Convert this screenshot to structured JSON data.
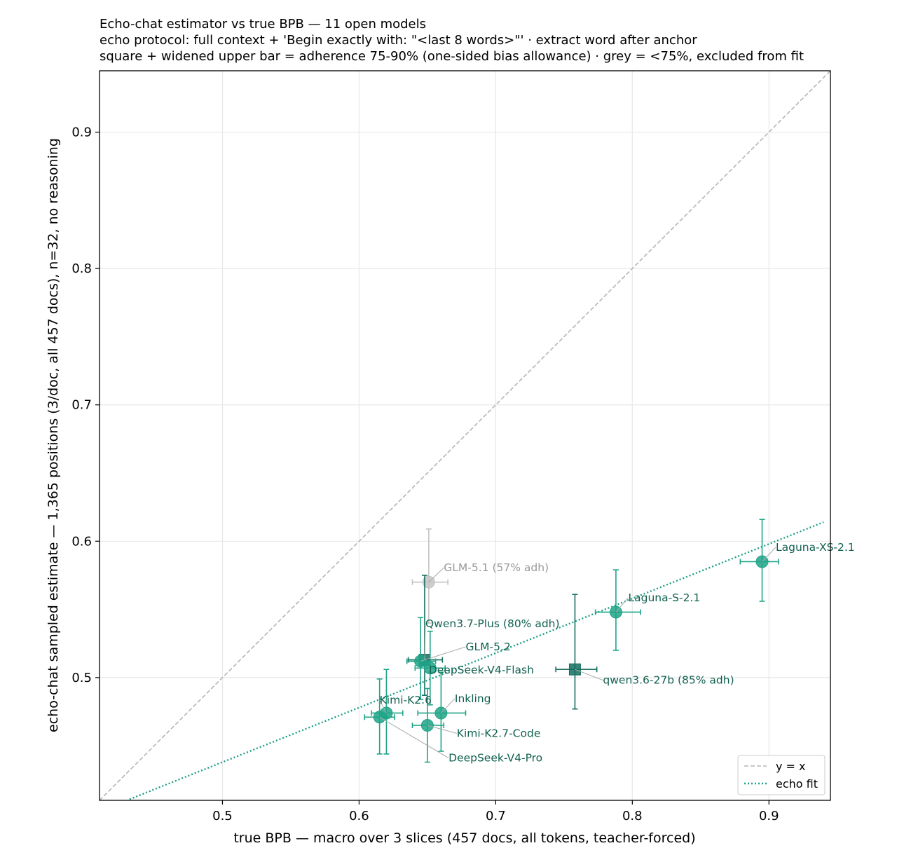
{
  "chart_data": {
    "type": "scatter",
    "title_lines": [
      "Echo-chat estimator vs true BPB — 11 open models",
      "echo protocol: full context + 'Begin exactly with: \"<last 8 words>\"' · extract word after anchor",
      "square + widened upper bar = adherence 75-90% (one-sided bias allowance) · grey = <75%, excluded from fit"
    ],
    "xlabel": "true BPB — macro over 3 slices (457 docs, all tokens, teacher-forced)",
    "ylabel": "echo-chat sampled estimate — 1,365 positions (3/doc, all 457 docs), n=32, no reasoning",
    "xlim": [
      0.41,
      0.945
    ],
    "ylim": [
      0.41,
      0.945
    ],
    "x_ticks": [
      0.5,
      0.6,
      0.7,
      0.8,
      0.9
    ],
    "y_ticks": [
      0.5,
      0.6,
      0.7,
      0.8,
      0.9
    ],
    "x_tick_labels": [
      "0.5",
      "0.6",
      "0.7",
      "0.8",
      "0.9"
    ],
    "y_tick_labels": [
      "0.5",
      "0.6",
      "0.7",
      "0.8",
      "0.9"
    ],
    "grid": true,
    "legend_position": "bottom-right",
    "legend": [
      {
        "label": "y = x",
        "style": "dashed",
        "color": "#b5b5b5"
      },
      {
        "label": "echo fit",
        "style": "dotted",
        "color": "#1a9e85"
      }
    ],
    "identity_line": true,
    "fit_line": {
      "slope": 0.4,
      "intercept": 0.238
    },
    "colors": {
      "fit_marker": "#1fa487",
      "dark_marker": "#156e5f",
      "label_text": "#11614f",
      "excluded": "#c3c3c3",
      "excluded_label": "#999999",
      "identity": "#b5b5b5",
      "fit_line": "#1a9e85"
    },
    "points": [
      {
        "name": "Laguna-XS-2.1",
        "x": 0.895,
        "y": 0.585,
        "x_err": [
          0.016,
          0.012
        ],
        "y_err": [
          0.029,
          0.031
        ],
        "marker": "circle",
        "status": "fit",
        "label_x": 0.905,
        "label_y": 0.593
      },
      {
        "name": "Laguna-S-2.1",
        "x": 0.788,
        "y": 0.548,
        "x_err": [
          0.015,
          0.018
        ],
        "y_err": [
          0.028,
          0.031
        ],
        "marker": "circle",
        "status": "fit",
        "label_x": 0.797,
        "label_y": 0.556
      },
      {
        "name": "GLM-5.1 (57% adh)",
        "x": 0.651,
        "y": 0.57,
        "x_err": [
          0.012,
          0.014
        ],
        "y_err": [
          0.03,
          0.039
        ],
        "marker": "circle",
        "status": "excluded",
        "label_x": 0.662,
        "label_y": 0.578
      },
      {
        "name": "Qwen3.7-Plus (80% adh)",
        "x": 0.648,
        "y": 0.513,
        "x_err": [
          0.012,
          0.013
        ],
        "y_err": [
          0.026,
          0.062
        ],
        "marker": "square",
        "status": "adherence_75_90",
        "label_x": 0.6485,
        "label_y": 0.537
      },
      {
        "name": "GLM-5.2",
        "x": 0.645,
        "y": 0.512,
        "x_err": [
          0.01,
          0.011
        ],
        "y_err": [
          0.028,
          0.032
        ],
        "marker": "circle",
        "status": "fit",
        "label_x": 0.678,
        "label_y": 0.52
      },
      {
        "name": "DeepSeek-V4-Flash",
        "x": 0.652,
        "y": 0.507,
        "x_err": [
          0.011,
          0.011
        ],
        "y_err": [
          0.027,
          0.027
        ],
        "marker": "circle",
        "status": "fit",
        "label_x": 0.651,
        "label_y": 0.503
      },
      {
        "name": "qwen3.6-27b (85% adh)",
        "x": 0.758,
        "y": 0.506,
        "x_err": [
          0.014,
          0.016
        ],
        "y_err": [
          0.029,
          0.055
        ],
        "marker": "square",
        "status": "adherence_75_90",
        "label_x": 0.7785,
        "label_y": 0.4955
      },
      {
        "name": "Kimi-K2.6",
        "x": 0.62,
        "y": 0.474,
        "x_err": [
          0.011,
          0.012
        ],
        "y_err": [
          0.03,
          0.032
        ],
        "marker": "circle",
        "status": "fit",
        "label_x": 0.615,
        "label_y": 0.481
      },
      {
        "name": "Inkling",
        "x": 0.66,
        "y": 0.474,
        "x_err": [
          0.017,
          0.018
        ],
        "y_err": [
          0.028,
          0.03
        ],
        "marker": "circle",
        "status": "fit",
        "label_x": 0.67,
        "label_y": 0.482
      },
      {
        "name": "Kimi-K2.7-Code",
        "x": 0.65,
        "y": 0.465,
        "x_err": [
          0.011,
          0.012
        ],
        "y_err": [
          0.027,
          0.027
        ],
        "marker": "circle",
        "status": "fit",
        "label_x": 0.6715,
        "label_y": 0.4565
      },
      {
        "name": "DeepSeek-V4-Pro",
        "x": 0.615,
        "y": 0.471,
        "x_err": [
          0.011,
          0.011
        ],
        "y_err": [
          0.027,
          0.028
        ],
        "marker": "circle",
        "status": "fit",
        "label_x": 0.6655,
        "label_y": 0.4385
      }
    ]
  }
}
